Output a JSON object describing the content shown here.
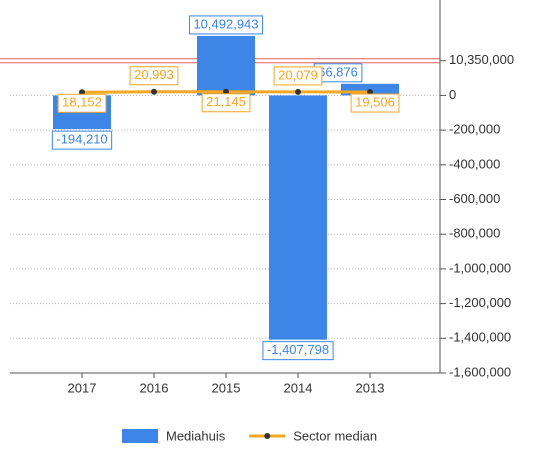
{
  "chart_data": {
    "type": "bar",
    "categories": [
      "2017",
      "2016",
      "2015",
      "2014",
      "2013"
    ],
    "series": [
      {
        "name": "Mediahuis",
        "type": "bar",
        "color": "#3d85e6",
        "values": [
          -194210,
          null,
          10492943,
          -1407798,
          66876
        ],
        "value_labels": [
          "-194,210",
          null,
          "10,492,943",
          "-1,407,798",
          "66,876"
        ]
      },
      {
        "name": "Sector median",
        "type": "line",
        "color": "#f5a623",
        "values": [
          18152,
          20993,
          21145,
          20079,
          19506
        ],
        "value_labels": [
          "18,152",
          "20,993",
          "21,145",
          "20,079",
          "19,506"
        ]
      }
    ],
    "ylim": [
      -1600000,
      10700000
    ],
    "yticks": [
      {
        "value": 10350000,
        "label": "10,350,000"
      },
      0,
      {
        "value": -200000,
        "label": "-200,000"
      },
      {
        "value": -400000,
        "label": "-400,000"
      },
      {
        "value": -600000,
        "label": "-600,000"
      },
      {
        "value": -800000,
        "label": "-800,000"
      },
      {
        "value": -1000000,
        "label": "-1,000,000"
      },
      {
        "value": -1200000,
        "label": "-1,200,000"
      },
      {
        "value": -1400000,
        "label": "-1,400,000"
      },
      {
        "value": -1600000,
        "label": "-1,600,000"
      }
    ],
    "axis_break": true,
    "grid": true,
    "legend": "bottom"
  }
}
